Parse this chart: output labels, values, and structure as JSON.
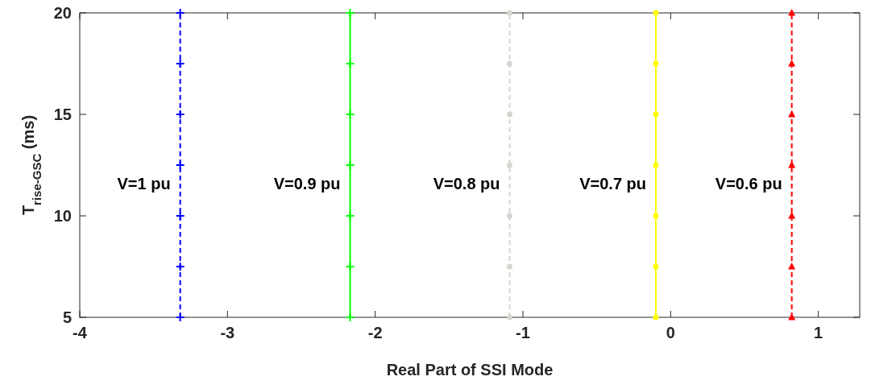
{
  "chart_data": {
    "type": "line",
    "xlabel": "Real Part of SSI Mode",
    "ylabel": "T$_{rise-GSC}$ (ms)",
    "xlim": [
      -4,
      1.28
    ],
    "ylim": [
      5,
      20
    ],
    "xticks": [
      -4,
      -3,
      -2,
      -1,
      0,
      1
    ],
    "yticks": [
      5,
      10,
      15,
      20
    ],
    "grid": false,
    "series": [
      {
        "name": "V=1 pu",
        "color": "#0000ff",
        "marker": "cross",
        "line_style": "dashed",
        "x": [
          -3.32,
          -3.32,
          -3.32,
          -3.32,
          -3.32,
          -3.32,
          -3.32
        ],
        "values": [
          5,
          7.5,
          10,
          12.5,
          15,
          17.5,
          20
        ]
      },
      {
        "name": "V=0.9 pu",
        "color": "#00ff00",
        "marker": "cross",
        "line_style": "solid",
        "x": [
          -2.17,
          -2.17,
          -2.17,
          -2.17,
          -2.17,
          -2.17,
          -2.17
        ],
        "values": [
          5,
          7.5,
          10,
          12.5,
          15,
          17.5,
          20
        ]
      },
      {
        "name": "V=0.8 pu",
        "color": "#d6d6d0",
        "marker": "circle",
        "line_style": "dashed",
        "x": [
          -1.09,
          -1.09,
          -1.09,
          -1.09,
          -1.09,
          -1.09,
          -1.09
        ],
        "values": [
          5,
          7.5,
          10,
          12.5,
          15,
          17.5,
          20
        ]
      },
      {
        "name": "V=0.7 pu",
        "color": "#ffff00",
        "marker": "circle",
        "line_style": "solid",
        "x": [
          -0.1,
          -0.1,
          -0.1,
          -0.1,
          -0.1,
          -0.1,
          -0.1
        ],
        "values": [
          5,
          7.5,
          10,
          12.5,
          15,
          17.5,
          20
        ]
      },
      {
        "name": "V=0.6 pu",
        "color": "#ff0000",
        "marker": "triangle",
        "line_style": "dashed",
        "x": [
          0.82,
          0.82,
          0.82,
          0.82,
          0.82,
          0.82,
          0.82
        ],
        "values": [
          5,
          7.5,
          10,
          12.5,
          15,
          17.5,
          20
        ]
      }
    ]
  }
}
